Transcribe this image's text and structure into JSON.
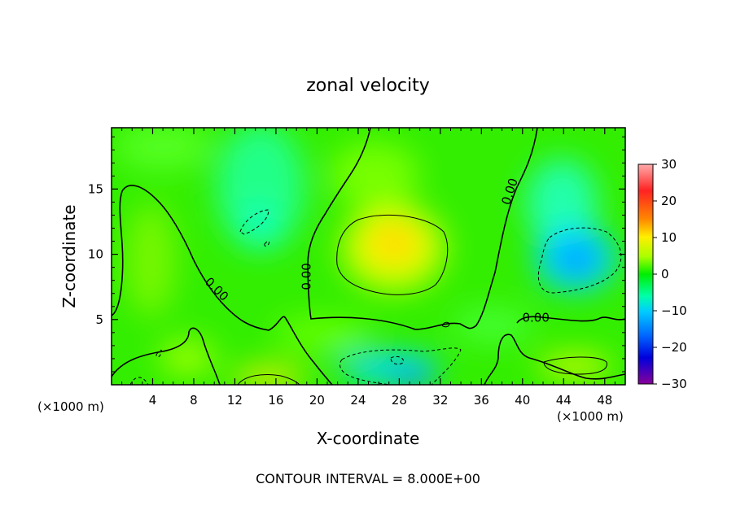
{
  "chart_data": {
    "type": "heatmap",
    "title": "zonal velocity",
    "xlabel": "X-coordinate",
    "ylabel": "Z-coordinate",
    "x_unit_left": "(×1000 m)",
    "x_unit_right": "(×1000 m)",
    "footer": "CONTOUR INTERVAL = 8.000E+00",
    "xlim": [
      0,
      50
    ],
    "ylim": [
      0,
      19.7
    ],
    "x_ticks": [
      4,
      8,
      12,
      16,
      20,
      24,
      28,
      32,
      36,
      40,
      44,
      48
    ],
    "y_ticks": [
      5,
      10,
      15
    ],
    "colorbar": {
      "min": -30,
      "max": 30,
      "ticks": [
        30,
        20,
        10,
        0,
        -10,
        -20,
        -30
      ],
      "tick_labels": [
        "30",
        "20",
        "10",
        "0",
        "−10",
        "−20",
        "−30"
      ]
    },
    "contour_labels": [
      {
        "text": "0.00",
        "x": 10.2,
        "z": 7.3,
        "angle": 45
      },
      {
        "text": "0.00",
        "x": 19.0,
        "z": 8.3,
        "angle": -90
      },
      {
        "text": "0.00",
        "x": 38.8,
        "z": 14.8,
        "angle": -72
      },
      {
        "text": "0.00",
        "x": 41.3,
        "z": 5.1,
        "angle": 0
      }
    ],
    "features": [
      {
        "kind": "max",
        "x": 27.5,
        "z": 11.0,
        "value": 12
      },
      {
        "kind": "max",
        "x": 45.5,
        "z": 1.6,
        "value": 10
      },
      {
        "kind": "max",
        "x": 15.0,
        "z": 0.5,
        "value": 10
      },
      {
        "kind": "min",
        "x": 45.5,
        "z": 10.0,
        "value": -12
      },
      {
        "kind": "min",
        "x": 28.0,
        "z": 1.5,
        "value": -12
      },
      {
        "kind": "min",
        "x": 14.0,
        "z": 12.0,
        "value": -8
      }
    ],
    "colors": {
      "scale": [
        "#8800aa",
        "#0000ff",
        "#00ccff",
        "#00ff66",
        "#ffff00",
        "#ff6600",
        "#ff0000",
        "#ff9999"
      ]
    }
  }
}
